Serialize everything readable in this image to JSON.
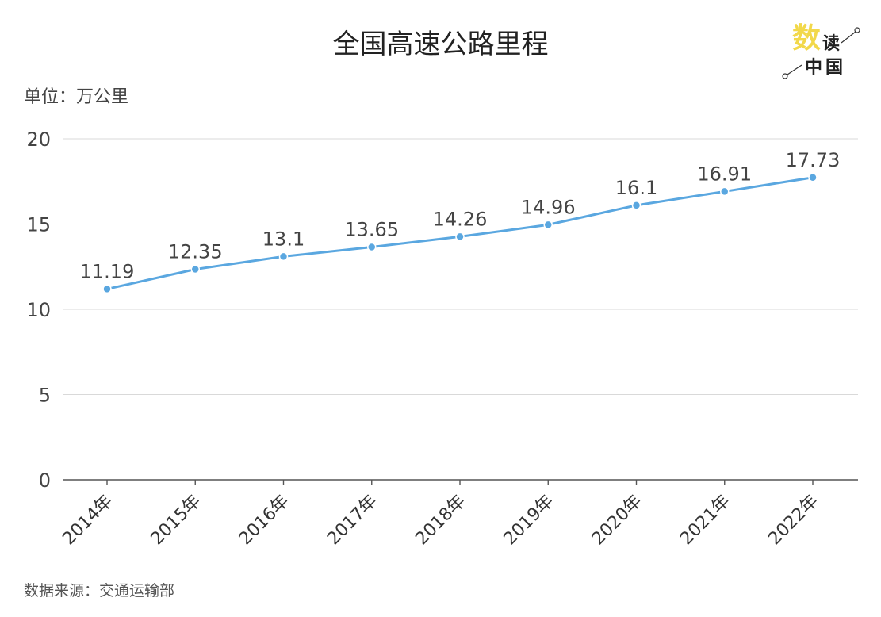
{
  "logo": {
    "text_main": "数",
    "text_side": "读",
    "text_bottom": "中国",
    "accent": "#f2d84a"
  },
  "chart_data": {
    "type": "line",
    "title": "全国高速公路里程",
    "unit_label": "单位：万公里",
    "source": "数据来源：交通运输部",
    "categories": [
      "2014年",
      "2015年",
      "2016年",
      "2017年",
      "2018年",
      "2019年",
      "2020年",
      "2021年",
      "2022年"
    ],
    "series": [
      {
        "values": [
          11.19,
          12.35,
          13.1,
          13.65,
          14.26,
          14.96,
          16.1,
          16.91,
          17.73
        ],
        "labels": [
          "11.19",
          "12.35",
          "13.1",
          "13.65",
          "14.26",
          "14.96",
          "16.1",
          "16.91",
          "17.73"
        ],
        "color": "#5aa7e0"
      }
    ],
    "ylim": [
      0,
      20
    ],
    "yticks": [
      "0",
      "5",
      "10",
      "15",
      "20"
    ],
    "grid": true
  }
}
